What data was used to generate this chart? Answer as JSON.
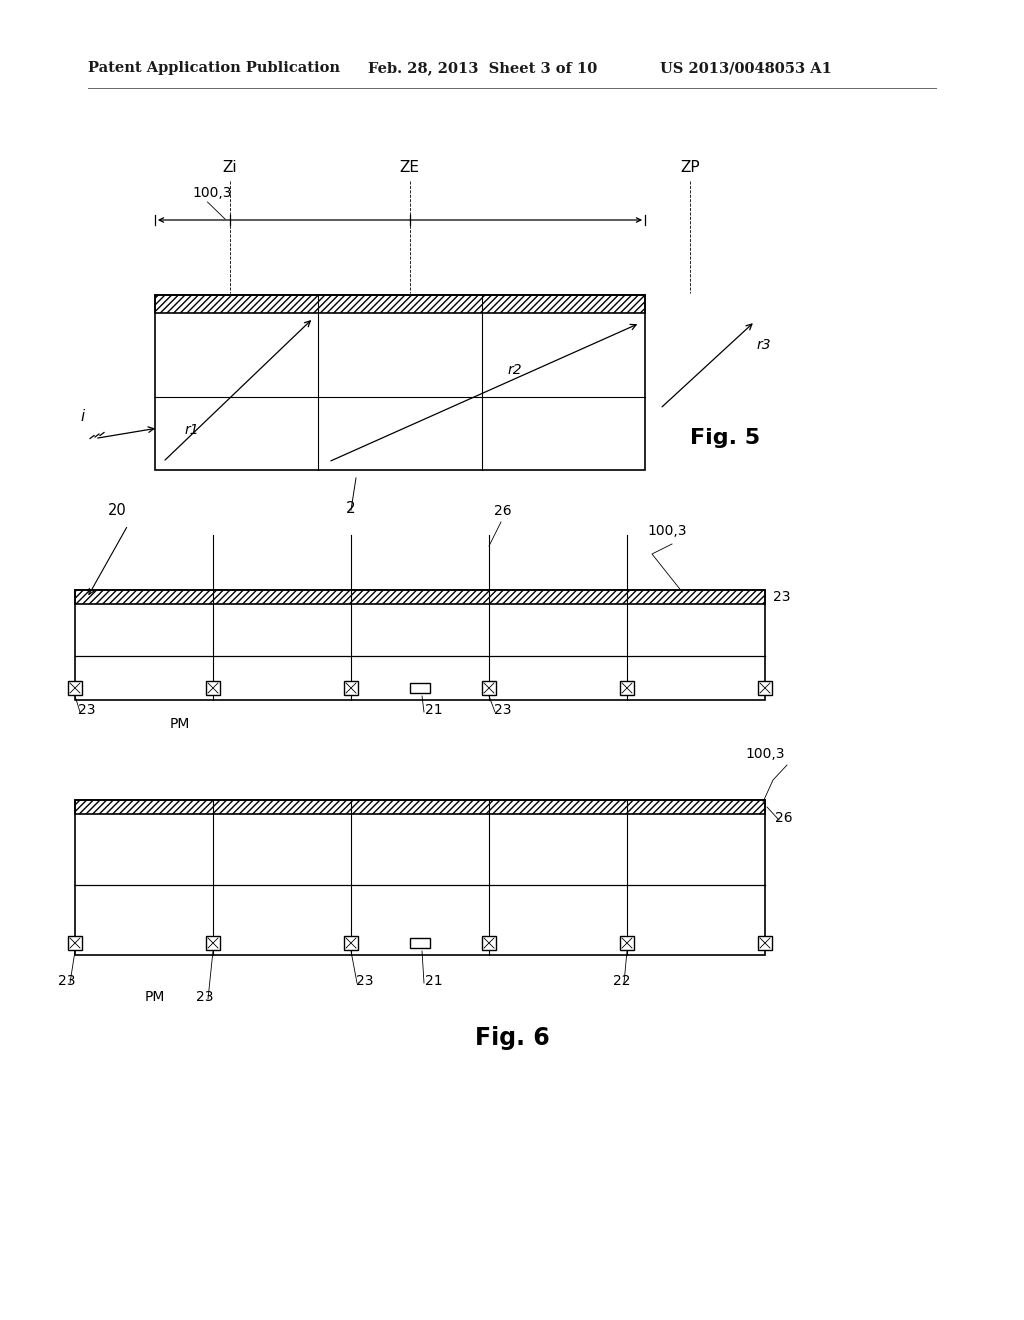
{
  "bg_color": "#ffffff",
  "header_left": "Patent Application Publication",
  "header_mid": "Feb. 28, 2013  Sheet 3 of 10",
  "header_right": "US 2013/0048053 A1",
  "header_fontsize": 10.5,
  "fig5_title": "Fig. 5",
  "fig6_title": "Fig. 6"
}
